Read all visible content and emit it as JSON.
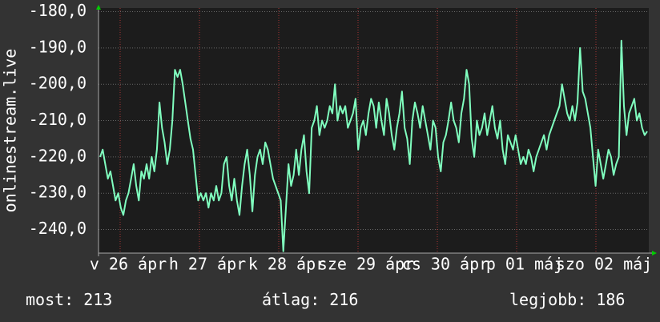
{
  "chart_data": {
    "type": "line",
    "y_label": "onlinestream.live",
    "x_labels": [
      "v 26 ápr",
      "h 27 ápr",
      "k 28 ápr",
      "sze 29 ápr",
      "cs 30 ápr",
      "p 01 máj",
      "szo 02 máj"
    ],
    "color": "#80ffbf",
    "ylim": [
      -246.5,
      -179
    ],
    "yticks": [
      {
        "value": -180,
        "label": "-180,0"
      },
      {
        "value": -190,
        "label": "-190,0"
      },
      {
        "value": -200,
        "label": "-200,0"
      },
      {
        "value": -210,
        "label": "-210,0"
      },
      {
        "value": -220,
        "label": "-220,0"
      },
      {
        "value": -230,
        "label": "-230,0"
      },
      {
        "value": -240,
        "label": "-240,0"
      }
    ],
    "grid": true,
    "values": [
      -220,
      -218,
      -222,
      -226,
      -224,
      -228,
      -232,
      -230,
      -234,
      -236,
      -232,
      -230,
      -226,
      -222,
      -228,
      -232,
      -224,
      -226,
      -222,
      -226,
      -220,
      -224,
      -218,
      -205,
      -212,
      -216,
      -222,
      -218,
      -210,
      -196,
      -198,
      -196,
      -200,
      -205,
      -210,
      -215,
      -218,
      -225,
      -232,
      -230,
      -232,
      -230,
      -234,
      -230,
      -232,
      -228,
      -232,
      -230,
      -222,
      -220,
      -228,
      -232,
      -226,
      -232,
      -236,
      -228,
      -222,
      -218,
      -225,
      -235,
      -225,
      -220,
      -218,
      -222,
      -216,
      -218,
      -222,
      -226,
      -228,
      -230,
      -232,
      -246,
      -234,
      -222,
      -228,
      -225,
      -218,
      -225,
      -218,
      -214,
      -224,
      -230,
      -212,
      -210,
      -206,
      -214,
      -210,
      -212,
      -210,
      -206,
      -208,
      -200,
      -210,
      -206,
      -208,
      -206,
      -212,
      -210,
      -208,
      -204,
      -218,
      -212,
      -210,
      -214,
      -208,
      -204,
      -206,
      -212,
      -205,
      -210,
      -214,
      -204,
      -208,
      -214,
      -218,
      -212,
      -208,
      -202,
      -212,
      -215,
      -222,
      -210,
      -205,
      -208,
      -212,
      -206,
      -210,
      -214,
      -218,
      -210,
      -212,
      -220,
      -224,
      -216,
      -214,
      -210,
      -205,
      -210,
      -212,
      -216,
      -208,
      -204,
      -196,
      -200,
      -215,
      -220,
      -210,
      -214,
      -212,
      -208,
      -214,
      -210,
      -206,
      -212,
      -215,
      -210,
      -218,
      -222,
      -214,
      -216,
      -218,
      -214,
      -218,
      -222,
      -220,
      -222,
      -218,
      -220,
      -224,
      -220,
      -218,
      -216,
      -214,
      -218,
      -214,
      -212,
      -210,
      -208,
      -206,
      -200,
      -204,
      -208,
      -210,
      -206,
      -210,
      -205,
      -190,
      -202,
      -204,
      -208,
      -212,
      -220,
      -228,
      -218,
      -222,
      -226,
      -222,
      -218,
      -220,
      -225,
      -222,
      -220,
      -188,
      -206,
      -214,
      -208,
      -206,
      -204,
      -210,
      -208,
      -212,
      -214,
      -213
    ],
    "footer": [
      {
        "label": "most:",
        "value": 213
      },
      {
        "label": "átlag:",
        "value": 216
      },
      {
        "label": "legjobb:",
        "value": 186
      }
    ]
  }
}
